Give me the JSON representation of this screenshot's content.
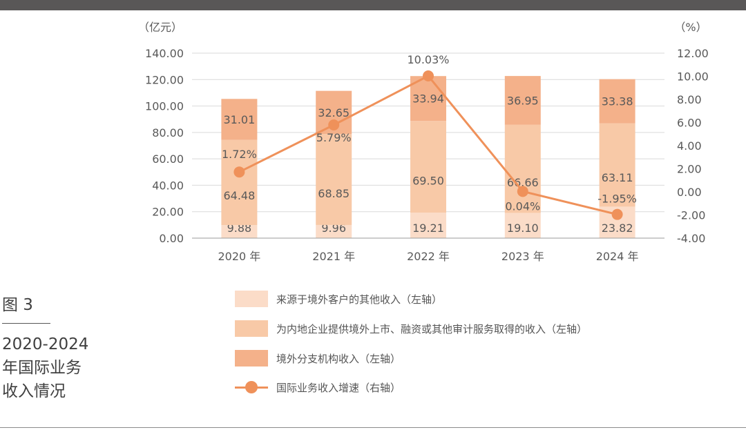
{
  "chart_data": {
    "type": "bar",
    "stacked": true,
    "categories": [
      "2020 年",
      "2021 年",
      "2022 年",
      "2023 年",
      "2024 年"
    ],
    "left_axis": {
      "unit_label": "（亿元）",
      "ylim": [
        0,
        140
      ],
      "ticks": [
        "0.00",
        "20.00",
        "40.00",
        "60.00",
        "80.00",
        "100.00",
        "120.00",
        "140.00"
      ]
    },
    "right_axis": {
      "unit_label": "（%）",
      "ylim": [
        -4,
        12
      ],
      "ticks": [
        "-4.00",
        "-2.00",
        "0.00",
        "2.00",
        "4.00",
        "6.00",
        "8.00",
        "10.00",
        "12.00"
      ]
    },
    "series": [
      {
        "name": "来源于境外客户的其他收入（左轴）",
        "axis": "left",
        "color": "#fbdcc8",
        "values": [
          9.88,
          9.96,
          19.21,
          19.1,
          23.82
        ],
        "labels": [
          "9.88",
          "9.96",
          "19.21",
          "19.10",
          "23.82"
        ]
      },
      {
        "name": "为内地企业提供境外上市、融资或其他审计服务取得的收入（左轴）",
        "axis": "left",
        "color": "#f8c9a7",
        "values": [
          64.48,
          68.85,
          69.5,
          66.66,
          63.11
        ],
        "labels": [
          "64.48",
          "68.85",
          "69.50",
          "66.66",
          "63.11"
        ]
      },
      {
        "name": "境外分支机构收入（左轴）",
        "axis": "left",
        "color": "#f4b18a",
        "values": [
          31.01,
          32.65,
          33.94,
          36.95,
          33.38
        ],
        "labels": [
          "31.01",
          "32.65",
          "33.94",
          "36.95",
          "33.38"
        ]
      },
      {
        "name": "国际业务收入增速（右轴）",
        "axis": "right",
        "type": "line",
        "color": "#ef915a",
        "values": [
          1.72,
          5.79,
          10.03,
          0.04,
          -1.95
        ],
        "labels": [
          "1.72%",
          "5.79%",
          "10.03%",
          "0.04%",
          "-1.95%"
        ]
      }
    ],
    "grid": true,
    "legend_position": "bottom"
  },
  "figure": {
    "number": "图 3",
    "title_lines": [
      "2020-2024",
      "年国际业务",
      "收入情况"
    ]
  },
  "colors": {
    "top_bar": "#595757",
    "grid": "#d9d9d9",
    "axis": "#9a9a9a",
    "text": "#555555"
  }
}
